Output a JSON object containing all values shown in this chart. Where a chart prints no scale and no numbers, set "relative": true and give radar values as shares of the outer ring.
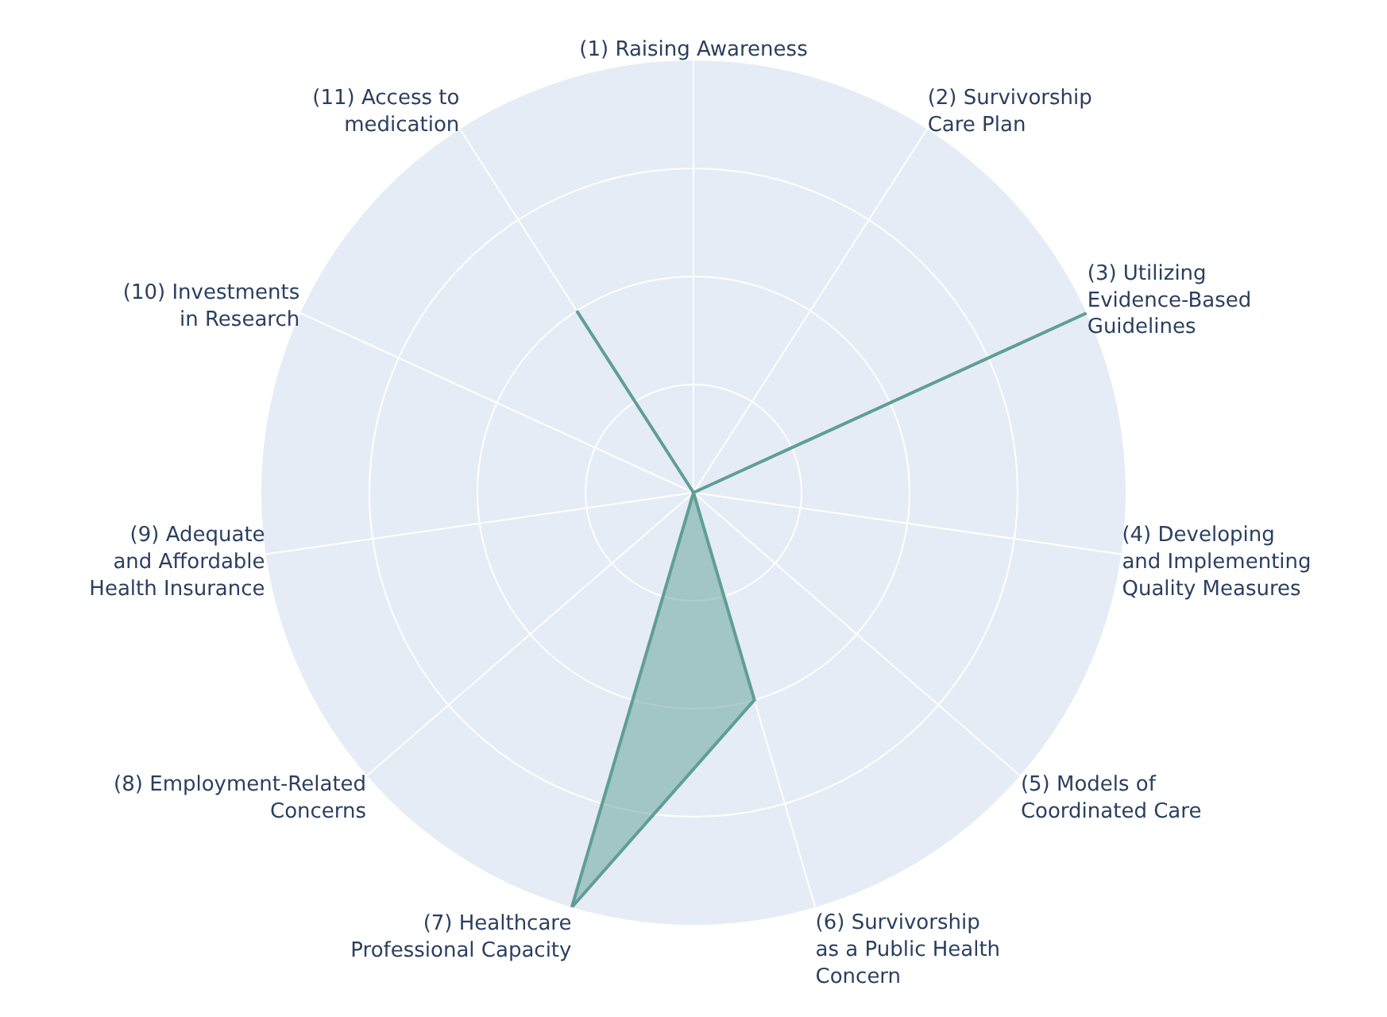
{
  "chart_data": {
    "type": "radar",
    "relative": true,
    "grid": true,
    "categories": [
      "(1) Raising Awareness",
      "(2) Survivorship\nCare Plan",
      "(3) Utilizing\nEvidence-Based\nGuidelines",
      "(4) Developing\nand Implementing\nQuality Measures",
      "(5) Models of\nCoordinated Care",
      "(6) Survivorship\nas a Public Health\nConcern",
      "(7) Healthcare\nProfessional Capacity",
      "(8) Employment-Related\nConcerns",
      "(9) Adequate\nand Affordable\nHealth Insurance",
      "(10) Investments\nin Research",
      "(11) Access to\nmedication"
    ],
    "series": [
      {
        "color": "#5f9e96",
        "values": [
          0,
          0,
          1,
          0,
          0,
          0.5,
          1,
          0,
          0,
          0,
          0.5
        ]
      }
    ]
  }
}
